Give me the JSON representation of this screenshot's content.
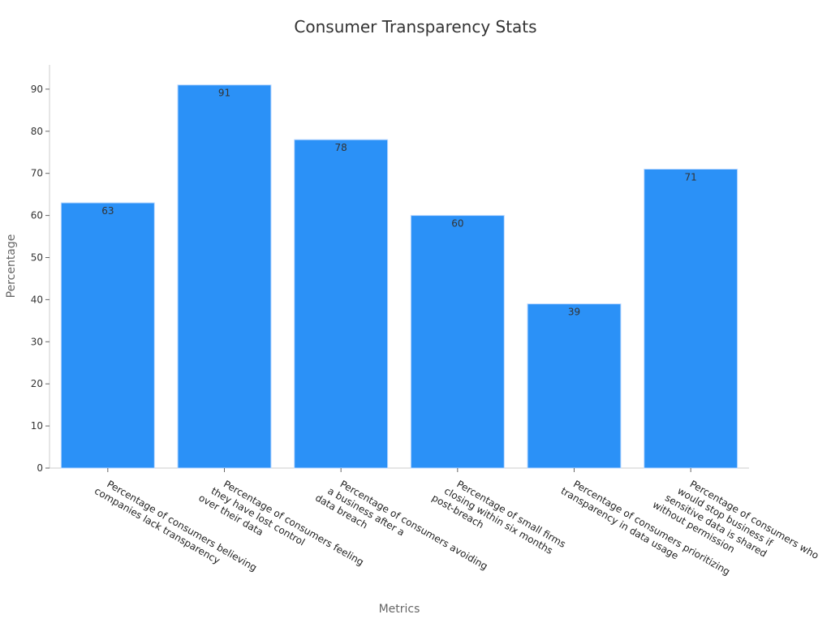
{
  "chart_data": {
    "type": "bar",
    "title": "Consumer Transparency Stats",
    "xlabel": "Metrics",
    "ylabel": "Percentage",
    "ylim": [
      0,
      95
    ],
    "yticks": [
      0,
      10,
      20,
      30,
      40,
      50,
      60,
      70,
      80,
      90
    ],
    "grid": false,
    "legend": "none",
    "bar_color": "#2b91f7",
    "categories": [
      [
        "Percentage of consumers believing",
        "companies lack transparency"
      ],
      [
        "Percentage of consumers feeling",
        "they have lost control",
        "over their data"
      ],
      [
        "Percentage of consumers avoiding",
        "a business after a",
        "data breach"
      ],
      [
        "Percentage of small firms",
        "closing within six months",
        "post-breach"
      ],
      [
        "Percentage of consumers prioritizing",
        "transparency in data usage"
      ],
      [
        "Percentage of consumers who",
        "would stop business if",
        "sensitive data is shared",
        "without permission"
      ]
    ],
    "values": [
      63,
      91,
      78,
      60,
      39,
      71
    ]
  }
}
